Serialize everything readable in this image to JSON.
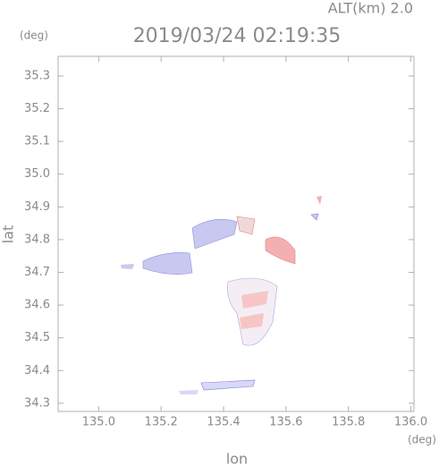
{
  "chart_data": {
    "type": "map",
    "subtitle": "ALT(km) 2.0",
    "title": "2019/03/24 02:19:35",
    "y_unit": "(deg)",
    "x_unit": "(deg)",
    "xlabel": "lon",
    "ylabel": "lat",
    "xlim": [
      134.87,
      136.01
    ],
    "ylim": [
      34.275,
      35.36
    ],
    "xticks": [
      {
        "value": 135,
        "label": "135.0"
      },
      135.2,
      135.4,
      135.6,
      135.8,
      {
        "value": 136,
        "label": "136.0"
      }
    ],
    "yticks": [
      34.3,
      34.4,
      34.5,
      34.6,
      34.7,
      34.8,
      34.9,
      {
        "value": 35,
        "label": "35.0"
      },
      35.1,
      35.2,
      35.3
    ],
    "grid": false
  }
}
